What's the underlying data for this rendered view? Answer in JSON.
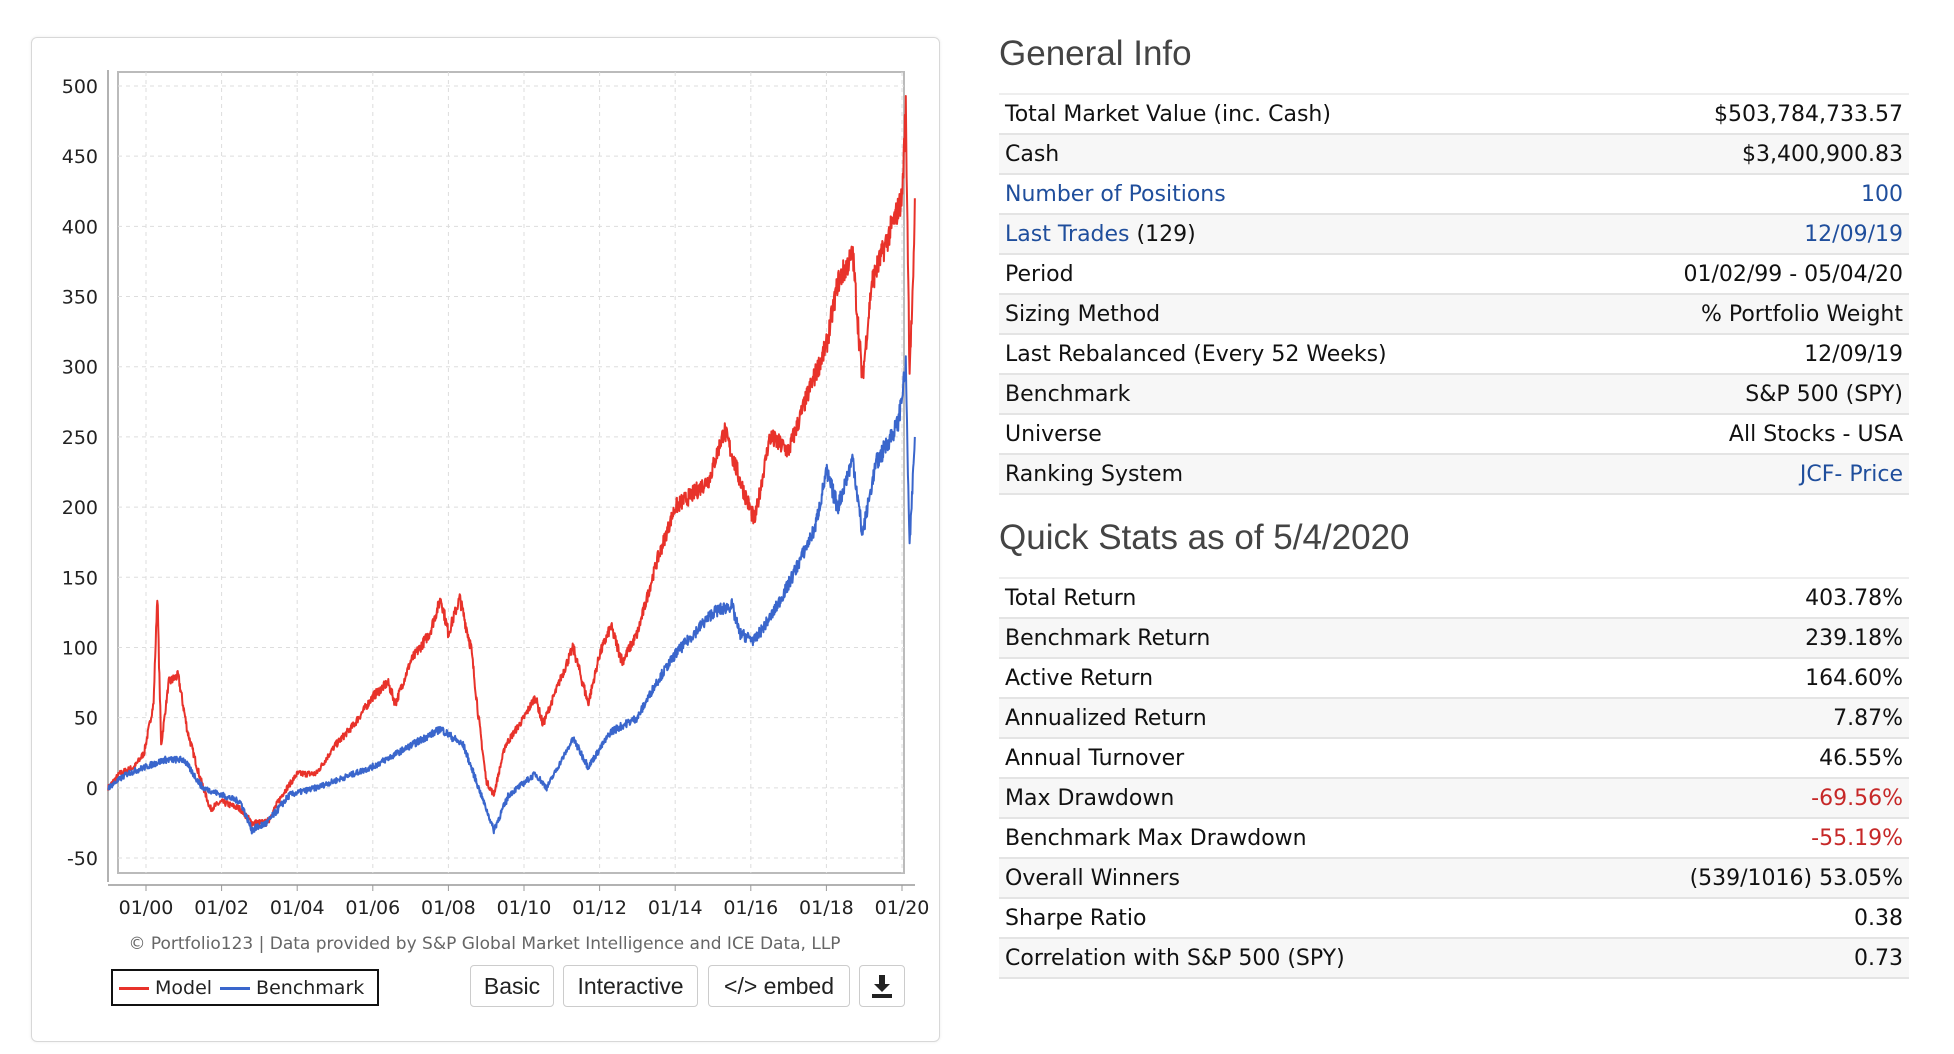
{
  "chart_data": {
    "type": "line",
    "title": "",
    "xlabel": "",
    "ylabel": "",
    "xlim": [
      1999.0,
      2020.34
    ],
    "ylim": [
      -60,
      510
    ],
    "yticks": [
      500,
      450,
      400,
      350,
      300,
      250,
      200,
      150,
      100,
      50,
      0,
      -50
    ],
    "xticks": [
      {
        "x": 2000,
        "label": "01/00"
      },
      {
        "x": 2002,
        "label": "01/02"
      },
      {
        "x": 2004,
        "label": "01/04"
      },
      {
        "x": 2006,
        "label": "01/06"
      },
      {
        "x": 2008,
        "label": "01/08"
      },
      {
        "x": 2010,
        "label": "01/10"
      },
      {
        "x": 2012,
        "label": "01/12"
      },
      {
        "x": 2014,
        "label": "01/14"
      },
      {
        "x": 2016,
        "label": "01/16"
      },
      {
        "x": 2018,
        "label": "01/18"
      },
      {
        "x": 2020,
        "label": "01/20"
      }
    ],
    "grid": true,
    "legend": "bottom-left",
    "series": [
      {
        "name": "Model",
        "color": "#e8322a",
        "points": [
          [
            1999.0,
            0
          ],
          [
            1999.3,
            10
          ],
          [
            1999.7,
            15
          ],
          [
            1999.95,
            25
          ],
          [
            2000.2,
            60
          ],
          [
            2000.3,
            138
          ],
          [
            2000.4,
            30
          ],
          [
            2000.6,
            75
          ],
          [
            2000.85,
            80
          ],
          [
            2001.1,
            40
          ],
          [
            2001.4,
            10
          ],
          [
            2001.7,
            -15
          ],
          [
            2002.0,
            -10
          ],
          [
            2002.5,
            -15
          ],
          [
            2002.8,
            -25
          ],
          [
            2003.2,
            -25
          ],
          [
            2003.6,
            -5
          ],
          [
            2004.0,
            10
          ],
          [
            2004.5,
            10
          ],
          [
            2005.0,
            30
          ],
          [
            2005.5,
            45
          ],
          [
            2006.0,
            65
          ],
          [
            2006.4,
            75
          ],
          [
            2006.6,
            60
          ],
          [
            2007.0,
            90
          ],
          [
            2007.5,
            110
          ],
          [
            2007.8,
            135
          ],
          [
            2008.0,
            110
          ],
          [
            2008.3,
            135
          ],
          [
            2008.6,
            100
          ],
          [
            2008.8,
            50
          ],
          [
            2009.0,
            5
          ],
          [
            2009.2,
            -5
          ],
          [
            2009.5,
            30
          ],
          [
            2010.0,
            50
          ],
          [
            2010.3,
            65
          ],
          [
            2010.5,
            45
          ],
          [
            2011.0,
            80
          ],
          [
            2011.3,
            100
          ],
          [
            2011.7,
            60
          ],
          [
            2012.0,
            95
          ],
          [
            2012.3,
            115
          ],
          [
            2012.6,
            90
          ],
          [
            2013.0,
            110
          ],
          [
            2013.5,
            160
          ],
          [
            2014.0,
            200
          ],
          [
            2014.5,
            210
          ],
          [
            2014.9,
            220
          ],
          [
            2015.3,
            255
          ],
          [
            2015.7,
            220
          ],
          [
            2016.1,
            190
          ],
          [
            2016.5,
            250
          ],
          [
            2017.0,
            240
          ],
          [
            2017.5,
            280
          ],
          [
            2018.0,
            315
          ],
          [
            2018.3,
            360
          ],
          [
            2018.7,
            380
          ],
          [
            2018.95,
            290
          ],
          [
            2019.2,
            360
          ],
          [
            2019.6,
            390
          ],
          [
            2020.0,
            420
          ],
          [
            2020.1,
            485
          ],
          [
            2020.2,
            300
          ],
          [
            2020.3,
            360
          ],
          [
            2020.34,
            420
          ]
        ]
      },
      {
        "name": "Benchmark",
        "color": "#3a66cc",
        "points": [
          [
            1999.0,
            0
          ],
          [
            1999.5,
            10
          ],
          [
            2000.0,
            15
          ],
          [
            2000.5,
            20
          ],
          [
            2001.0,
            20
          ],
          [
            2001.5,
            0
          ],
          [
            2002.0,
            -5
          ],
          [
            2002.5,
            -10
          ],
          [
            2002.8,
            -30
          ],
          [
            2003.2,
            -25
          ],
          [
            2003.8,
            -5
          ],
          [
            2004.5,
            0
          ],
          [
            2005.0,
            5
          ],
          [
            2006.0,
            15
          ],
          [
            2007.0,
            30
          ],
          [
            2007.8,
            42
          ],
          [
            2008.4,
            30
          ],
          [
            2008.8,
            0
          ],
          [
            2009.2,
            -30
          ],
          [
            2009.6,
            -5
          ],
          [
            2010.3,
            10
          ],
          [
            2010.6,
            0
          ],
          [
            2011.3,
            35
          ],
          [
            2011.7,
            15
          ],
          [
            2012.3,
            40
          ],
          [
            2013.0,
            50
          ],
          [
            2013.5,
            75
          ],
          [
            2014.0,
            95
          ],
          [
            2014.5,
            110
          ],
          [
            2015.0,
            125
          ],
          [
            2015.5,
            130
          ],
          [
            2015.7,
            110
          ],
          [
            2016.1,
            105
          ],
          [
            2016.6,
            125
          ],
          [
            2017.0,
            145
          ],
          [
            2017.7,
            185
          ],
          [
            2018.0,
            225
          ],
          [
            2018.3,
            200
          ],
          [
            2018.7,
            235
          ],
          [
            2018.95,
            180
          ],
          [
            2019.3,
            230
          ],
          [
            2019.9,
            260
          ],
          [
            2020.1,
            300
          ],
          [
            2020.2,
            170
          ],
          [
            2020.34,
            250
          ]
        ]
      }
    ]
  },
  "chart_footer": {
    "credit": "© Portfolio123 | Data provided by S&P Global Market Intelligence and ICE Data, LLP",
    "legend_model": "Model",
    "legend_benchmark": "Benchmark",
    "btn_basic": "Basic",
    "btn_interactive": "Interactive",
    "btn_embed": "</> embed",
    "download_icon": "download-icon"
  },
  "general_info": {
    "title": "General Info",
    "rows": [
      {
        "label": "Total Market Value (inc. Cash)",
        "value": "$503,784,733.57"
      },
      {
        "label": "Cash",
        "value": "$3,400,900.83"
      },
      {
        "label": "Number of Positions",
        "value": "100"
      },
      {
        "label": "Last Trades",
        "extra": "(129)",
        "value": "12/09/19"
      },
      {
        "label": "Period",
        "value": "01/02/99 - 05/04/20"
      },
      {
        "label": "Sizing Method",
        "value": "% Portfolio Weight"
      },
      {
        "label": "Last Rebalanced (Every 52 Weeks)",
        "value": "12/09/19"
      },
      {
        "label": "Benchmark",
        "value": "S&P 500 (SPY)"
      },
      {
        "label": "Universe",
        "value": "All Stocks - USA"
      },
      {
        "label": "Ranking System",
        "value": "JCF- Price"
      }
    ]
  },
  "quick_stats": {
    "title": "Quick Stats as of 5/4/2020",
    "rows": [
      {
        "label": "Total Return",
        "value": "403.78%"
      },
      {
        "label": "Benchmark Return",
        "value": "239.18%"
      },
      {
        "label": "Active Return",
        "value": "164.60%"
      },
      {
        "label": "Annualized Return",
        "value": "7.87%"
      },
      {
        "label": "Annual Turnover",
        "value": "46.55%"
      },
      {
        "label": "Max Drawdown",
        "value": "-69.56%"
      },
      {
        "label": "Benchmark Max Drawdown",
        "value": "-55.19%"
      },
      {
        "label": "Overall Winners",
        "value": "(539/1016) 53.05%"
      },
      {
        "label": "Sharpe Ratio",
        "value": "0.38"
      },
      {
        "label": "Correlation with S&P 500 (SPY)",
        "value": "0.73"
      }
    ]
  },
  "colors": {
    "link": "#1f4e9c",
    "negative": "#c62828"
  }
}
